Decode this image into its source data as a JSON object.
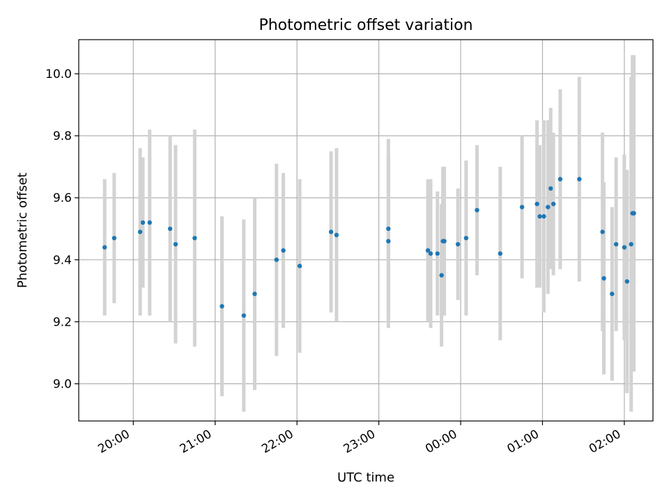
{
  "chart_data": {
    "type": "scatter",
    "title": "Photometric offset variation",
    "xlabel": "UTC time",
    "ylabel": "Photometric offset",
    "xlim": [
      "19:20",
      "02:21"
    ],
    "ylim": [
      8.88,
      10.11
    ],
    "xticks": [
      "20:00",
      "21:00",
      "22:00",
      "23:00",
      "00:00",
      "01:00",
      "02:00"
    ],
    "yticks": [
      "9.0",
      "9.2",
      "9.4",
      "9.6",
      "9.8",
      "10.0"
    ],
    "grid": true,
    "colors": {
      "points": "#1f77b4",
      "errorbars": "#d3d3d3",
      "grid": "#b0b0b0"
    },
    "series": [
      {
        "x": [
          "19:39",
          "19:46",
          "20:05",
          "20:07",
          "20:12",
          "20:27",
          "20:31",
          "20:45",
          "21:05",
          "21:21",
          "21:29",
          "21:45",
          "21:50",
          "22:02",
          "22:25",
          "22:29",
          "23:07",
          "23:07",
          "23:36",
          "23:38",
          "23:43",
          "23:46",
          "23:47",
          "23:48",
          "23:58",
          "00:04",
          "00:12",
          "00:29",
          "00:45",
          "00:56",
          "00:58",
          "01:01",
          "01:04",
          "01:06",
          "01:08",
          "01:13",
          "01:27",
          "01:44",
          "01:45",
          "01:51",
          "01:54",
          "02:00",
          "02:02",
          "02:05",
          "02:06",
          "02:07"
        ],
        "y": [
          9.44,
          9.47,
          9.49,
          9.52,
          9.52,
          9.5,
          9.45,
          9.47,
          9.25,
          9.22,
          9.29,
          9.4,
          9.43,
          9.38,
          9.49,
          9.48,
          9.5,
          9.46,
          9.43,
          9.42,
          9.42,
          9.35,
          9.46,
          9.46,
          9.45,
          9.47,
          9.56,
          9.42,
          9.57,
          9.58,
          9.54,
          9.54,
          9.57,
          9.63,
          9.58,
          9.66,
          9.66,
          9.49,
          9.34,
          9.29,
          9.45,
          9.44,
          9.33,
          9.45,
          9.55,
          9.55
        ],
        "yerr": [
          0.22,
          0.21,
          0.27,
          0.21,
          0.3,
          0.3,
          0.32,
          0.35,
          0.29,
          0.31,
          0.31,
          0.31,
          0.25,
          0.28,
          0.26,
          0.28,
          0.29,
          0.28,
          0.23,
          0.24,
          0.2,
          0.23,
          0.24,
          0.24,
          0.18,
          0.25,
          0.21,
          0.28,
          0.23,
          0.27,
          0.23,
          0.31,
          0.28,
          0.26,
          0.23,
          0.29,
          0.33,
          0.32,
          0.31,
          0.28,
          0.28,
          0.3,
          0.36,
          0.54,
          0.51,
          0.51
        ]
      }
    ]
  }
}
